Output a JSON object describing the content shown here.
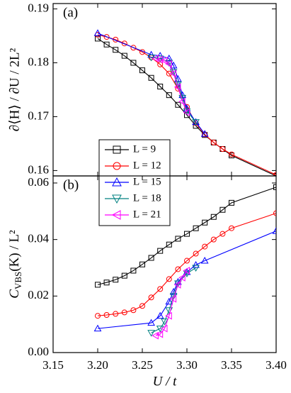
{
  "chart_data": [
    {
      "type": "line",
      "panel_label": "(a)",
      "y_label": "∂⟨H⟩ / ∂U / 2L²",
      "xlim": [
        3.15,
        3.4
      ],
      "ylim": [
        0.159,
        0.191
      ],
      "yticks": [
        0.16,
        0.17,
        0.18,
        0.19
      ],
      "legend": "upper left",
      "series": [
        {
          "name": "L = 9",
          "color": "#000000",
          "marker": "square",
          "x": [
            3.2,
            3.21,
            3.22,
            3.23,
            3.24,
            3.25,
            3.26,
            3.27,
            3.28,
            3.29,
            3.3,
            3.31,
            3.32,
            3.33,
            3.34,
            3.35,
            3.4
          ],
          "values": [
            0.1845,
            0.1834,
            0.1824,
            0.1813,
            0.18,
            0.1786,
            0.1772,
            0.1756,
            0.174,
            0.1722,
            0.1703,
            0.1683,
            0.1666,
            0.1652,
            0.164,
            0.1628,
            0.159
          ]
        },
        {
          "name": "L = 12",
          "color": "#ff0000",
          "marker": "circle",
          "x": [
            3.2,
            3.21,
            3.22,
            3.23,
            3.24,
            3.25,
            3.26,
            3.27,
            3.28,
            3.29,
            3.3,
            3.31,
            3.32,
            3.33,
            3.34,
            3.35,
            3.4
          ],
          "values": [
            0.1852,
            0.1848,
            0.1843,
            0.1836,
            0.1828,
            0.182,
            0.181,
            0.1797,
            0.178,
            0.1752,
            0.1718,
            0.1688,
            0.1667,
            0.1652,
            0.164,
            0.163,
            0.1592
          ]
        },
        {
          "name": "L = 15",
          "color": "#0000ff",
          "marker": "triangle-up",
          "x": [
            3.2,
            3.26,
            3.27,
            3.28,
            3.285,
            3.29,
            3.295,
            3.3,
            3.31,
            3.32
          ],
          "values": [
            0.1855,
            0.1815,
            0.1813,
            0.1808,
            0.1795,
            0.177,
            0.174,
            0.1715,
            0.169,
            0.1668
          ]
        },
        {
          "name": "L = 18",
          "color": "#008080",
          "marker": "triangle-down",
          "x": [
            3.26,
            3.27,
            3.28,
            3.285,
            3.29,
            3.295,
            3.3,
            3.31
          ],
          "values": [
            0.181,
            0.1808,
            0.18,
            0.1783,
            0.176,
            0.1735,
            0.171,
            0.169
          ]
        },
        {
          "name": "L = 21",
          "color": "#ff00ff",
          "marker": "triangle-left",
          "x": [
            3.265,
            3.27,
            3.275,
            3.28,
            3.285,
            3.29,
            3.295,
            3.3
          ],
          "values": [
            0.1808,
            0.1806,
            0.1804,
            0.1798,
            0.178,
            0.1755,
            0.1728,
            0.1708
          ]
        }
      ]
    },
    {
      "type": "line",
      "panel_label": "(b)",
      "y_label": {
        "main": "C",
        "sub": "VBS",
        "rest": "(K) / L²"
      },
      "x_label": "U / t",
      "xlim": [
        3.15,
        3.4
      ],
      "xticks": [
        3.15,
        {
          "value": 3.2,
          "label": "3.20"
        },
        3.25,
        {
          "value": 3.3,
          "label": "3.30"
        },
        3.35,
        {
          "value": 3.4,
          "label": "3.40"
        }
      ],
      "ylim": [
        0,
        0.0625
      ],
      "yticks": [
        {
          "value": 0,
          "label": "0.00"
        },
        0.02,
        0.04,
        0.06
      ],
      "series": [
        {
          "color": "#000000",
          "marker": "square",
          "x": [
            3.2,
            3.21,
            3.22,
            3.23,
            3.24,
            3.25,
            3.26,
            3.27,
            3.28,
            3.29,
            3.3,
            3.31,
            3.32,
            3.33,
            3.34,
            3.35,
            3.4
          ],
          "values": [
            0.024,
            0.0248,
            0.0258,
            0.0272,
            0.029,
            0.0312,
            0.0335,
            0.036,
            0.0382,
            0.0403,
            0.042,
            0.044,
            0.046,
            0.048,
            0.0505,
            0.053,
            0.0585
          ]
        },
        {
          "color": "#ff0000",
          "marker": "circle",
          "x": [
            3.2,
            3.21,
            3.22,
            3.23,
            3.24,
            3.25,
            3.26,
            3.27,
            3.28,
            3.29,
            3.3,
            3.31,
            3.32,
            3.33,
            3.34,
            3.35,
            3.4
          ],
          "values": [
            0.013,
            0.0133,
            0.0137,
            0.0142,
            0.015,
            0.0165,
            0.0195,
            0.0225,
            0.026,
            0.0295,
            0.0325,
            0.035,
            0.0375,
            0.04,
            0.042,
            0.044,
            0.0493
          ]
        },
        {
          "color": "#0000ff",
          "marker": "triangle-up",
          "x": [
            3.2,
            3.26,
            3.27,
            3.28,
            3.285,
            3.29,
            3.3,
            3.31,
            3.32,
            3.4
          ],
          "values": [
            0.0085,
            0.0105,
            0.013,
            0.018,
            0.0215,
            0.025,
            0.0285,
            0.031,
            0.0325,
            0.043
          ]
        },
        {
          "color": "#008080",
          "marker": "triangle-down",
          "x": [
            3.26,
            3.27,
            3.275,
            3.28,
            3.285,
            3.29,
            3.3,
            3.31
          ],
          "values": [
            0.007,
            0.0085,
            0.011,
            0.015,
            0.02,
            0.0245,
            0.028,
            0.03
          ]
        },
        {
          "color": "#ff00ff",
          "marker": "triangle-left",
          "x": [
            3.265,
            3.27,
            3.275,
            3.28,
            3.285,
            3.29,
            3.295,
            3.3
          ],
          "values": [
            0.006,
            0.0065,
            0.0085,
            0.013,
            0.019,
            0.024,
            0.0265,
            0.029
          ]
        }
      ]
    }
  ]
}
